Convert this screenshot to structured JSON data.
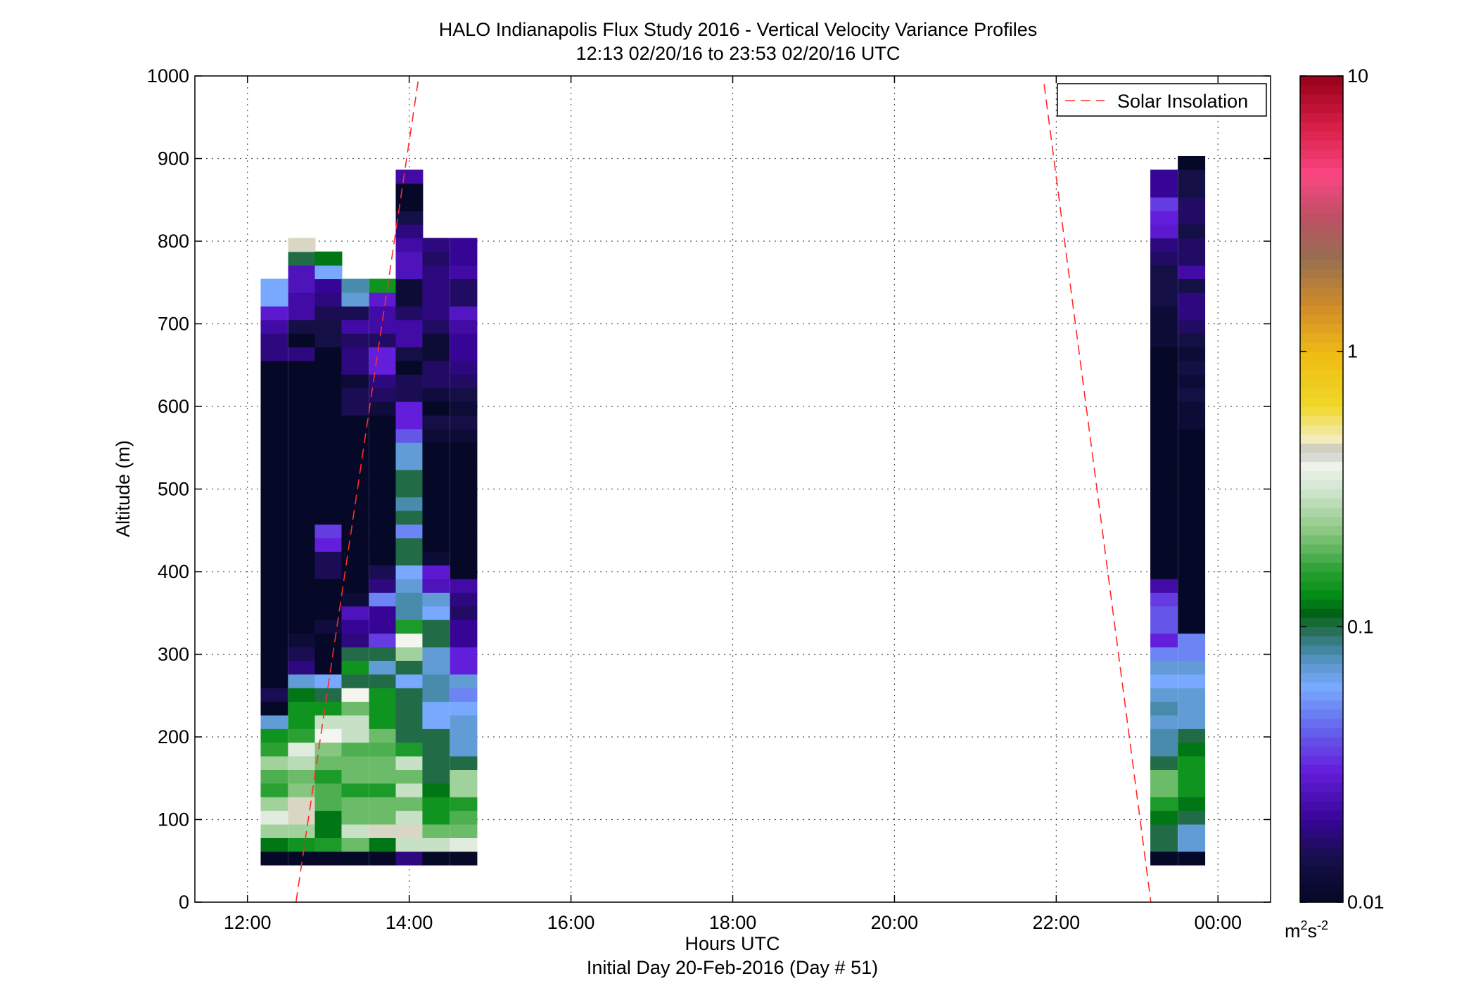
{
  "chart_data": {
    "type": "heatmap",
    "title": "HALO Indianapolis Flux Study 2016 - Vertical Velocity Variance Profiles",
    "subtitle": "12:13 02/20/16 to 23:53 02/20/16  UTC",
    "xlabel": "Hours UTC",
    "xlabel2": "Initial Day 20-Feb-2016 (Day # 51)",
    "ylabel": "Altitude (m)",
    "xlim": [
      11.35,
      24.65
    ],
    "ylim": [
      0,
      1000
    ],
    "x_ticks": [
      12,
      14,
      16,
      18,
      20,
      22,
      24
    ],
    "x_tick_labels": [
      "12:00",
      "14:00",
      "16:00",
      "18:00",
      "20:00",
      "22:00",
      "00:00"
    ],
    "y_ticks": [
      0,
      100,
      200,
      300,
      400,
      500,
      600,
      700,
      800,
      900,
      1000
    ],
    "y_tick_labels": [
      "0",
      "100",
      "200",
      "300",
      "400",
      "500",
      "600",
      "700",
      "800",
      "900",
      "1000"
    ],
    "grid": true,
    "legend": {
      "placement": "top-right",
      "entries": [
        "Solar Insolation"
      ]
    },
    "colorbar": {
      "scale": "log",
      "range": [
        0.01,
        10
      ],
      "tick_values": [
        0.01,
        0.1,
        1,
        10
      ],
      "tick_labels": [
        "0.01",
        "0.1",
        "1",
        "10"
      ],
      "unit_base": "m",
      "unit_sup1": "2",
      "unit_mid": "s",
      "unit_sup2": "-2"
    },
    "profile_altitude_start": 45,
    "profile_altitude_step": 16.5,
    "variance_profiles": [
      {
        "time": 12.33,
        "values": [
          0.01,
          0.12,
          0.25,
          0.35,
          0.25,
          0.16,
          0.18,
          0.25,
          0.16,
          0.14,
          0.07,
          0.01,
          0.015,
          0.01,
          0.01,
          0.01,
          0.01,
          0.01,
          0.01,
          0.01,
          0.01,
          0.01,
          0.01,
          0.01,
          0.01,
          0.01,
          0.01,
          0.01,
          0.01,
          0.01,
          0.01,
          0.01,
          0.01,
          0.01,
          0.01,
          0.01,
          0.01,
          0.018,
          0.018,
          0.022,
          0.028,
          0.06,
          0.06
        ]
      },
      {
        "time": 12.67,
        "values": [
          0.01,
          0.14,
          0.25,
          0.45,
          0.45,
          0.22,
          0.2,
          0.28,
          0.35,
          0.16,
          0.14,
          0.14,
          0.12,
          0.07,
          0.018,
          0.015,
          0.012,
          0.01,
          0.01,
          0.01,
          0.01,
          0.01,
          0.01,
          0.01,
          0.01,
          0.01,
          0.01,
          0.01,
          0.01,
          0.01,
          0.01,
          0.01,
          0.01,
          0.01,
          0.01,
          0.01,
          0.01,
          0.018,
          0.01,
          0.014,
          0.022,
          0.022,
          0.025,
          0.025,
          0.1,
          0.45
        ]
      },
      {
        "time": 13.0,
        "values": [
          0.01,
          0.15,
          0.12,
          0.12,
          0.18,
          0.18,
          0.15,
          0.2,
          0.22,
          0.4,
          0.3,
          0.14,
          0.1,
          0.06,
          0.01,
          0.01,
          0.01,
          0.013,
          0.01,
          0.01,
          0.01,
          0.015,
          0.015,
          0.03,
          0.035,
          0.01,
          0.01,
          0.01,
          0.01,
          0.01,
          0.01,
          0.01,
          0.01,
          0.01,
          0.01,
          0.01,
          0.01,
          0.01,
          0.014,
          0.014,
          0.015,
          0.018,
          0.02,
          0.06,
          0.12
        ]
      },
      {
        "time": 13.33,
        "values": [
          0.01,
          0.2,
          0.3,
          0.2,
          0.2,
          0.15,
          0.2,
          0.2,
          0.18,
          0.3,
          0.3,
          0.2,
          0.4,
          0.1,
          0.14,
          0.1,
          0.018,
          0.02,
          0.025,
          0.012,
          0.01,
          0.01,
          0.01,
          0.01,
          0.01,
          0.01,
          0.01,
          0.01,
          0.01,
          0.01,
          0.01,
          0.01,
          0.01,
          0.015,
          0.015,
          0.012,
          0.018,
          0.018,
          0.016,
          0.022,
          0.015,
          0.07,
          0.08
        ]
      },
      {
        "time": 13.67,
        "values": [
          0.01,
          0.12,
          0.45,
          0.2,
          0.2,
          0.15,
          0.2,
          0.2,
          0.18,
          0.2,
          0.14,
          0.14,
          0.14,
          0.1,
          0.07,
          0.1,
          0.035,
          0.02,
          0.02,
          0.05,
          0.018,
          0.015,
          0.01,
          0.01,
          0.01,
          0.01,
          0.01,
          0.01,
          0.01,
          0.01,
          0.01,
          0.01,
          0.01,
          0.013,
          0.016,
          0.018,
          0.03,
          0.03,
          0.016,
          0.022,
          0.022,
          0.028,
          0.14
        ]
      },
      {
        "time": 14.0,
        "values": [
          0.018,
          0.3,
          0.45,
          0.3,
          0.2,
          0.3,
          0.2,
          0.3,
          0.15,
          0.1,
          0.1,
          0.1,
          0.1,
          0.06,
          0.1,
          0.25,
          0.4,
          0.15,
          0.08,
          0.08,
          0.07,
          0.06,
          0.1,
          0.1,
          0.05,
          0.1,
          0.08,
          0.1,
          0.1,
          0.07,
          0.07,
          0.04,
          0.03,
          0.03,
          0.015,
          0.015,
          0.01,
          0.014,
          0.022,
          0.022,
          0.016,
          0.012,
          0.012,
          0.025,
          0.025,
          0.022,
          0.018,
          0.014,
          0.01,
          0.01,
          0.022
        ]
      },
      {
        "time": 14.33,
        "values": [
          0.01,
          0.3,
          0.2,
          0.14,
          0.14,
          0.12,
          0.1,
          0.1,
          0.1,
          0.1,
          0.06,
          0.06,
          0.08,
          0.08,
          0.07,
          0.07,
          0.1,
          0.1,
          0.06,
          0.07,
          0.025,
          0.028,
          0.012,
          0.01,
          0.01,
          0.01,
          0.01,
          0.01,
          0.01,
          0.01,
          0.01,
          0.012,
          0.014,
          0.01,
          0.013,
          0.016,
          0.016,
          0.012,
          0.012,
          0.016,
          0.018,
          0.018,
          0.018,
          0.018,
          0.016,
          0.018
        ]
      },
      {
        "time": 14.67,
        "values": [
          0.01,
          0.35,
          0.2,
          0.18,
          0.15,
          0.25,
          0.25,
          0.1,
          0.07,
          0.07,
          0.07,
          0.06,
          0.05,
          0.07,
          0.03,
          0.03,
          0.02,
          0.02,
          0.016,
          0.018,
          0.022,
          0.01,
          0.01,
          0.01,
          0.01,
          0.01,
          0.01,
          0.01,
          0.01,
          0.01,
          0.01,
          0.012,
          0.014,
          0.012,
          0.014,
          0.016,
          0.018,
          0.02,
          0.02,
          0.022,
          0.026,
          0.016,
          0.016,
          0.022,
          0.02,
          0.02
        ]
      },
      {
        "time": 23.33,
        "values": [
          0.01,
          0.1,
          0.1,
          0.12,
          0.15,
          0.2,
          0.2,
          0.1,
          0.08,
          0.08,
          0.07,
          0.08,
          0.07,
          0.06,
          0.07,
          0.05,
          0.03,
          0.04,
          0.04,
          0.035,
          0.022,
          0.01,
          0.01,
          0.01,
          0.01,
          0.01,
          0.01,
          0.01,
          0.01,
          0.01,
          0.01,
          0.01,
          0.01,
          0.01,
          0.01,
          0.01,
          0.01,
          0.01,
          0.012,
          0.012,
          0.012,
          0.014,
          0.014,
          0.014,
          0.016,
          0.018,
          0.028,
          0.03,
          0.035,
          0.02,
          0.02
        ]
      },
      {
        "time": 23.67,
        "values": [
          0.01,
          0.07,
          0.07,
          0.1,
          0.12,
          0.14,
          0.14,
          0.14,
          0.12,
          0.1,
          0.07,
          0.07,
          0.07,
          0.06,
          0.07,
          0.05,
          0.05,
          0.01,
          0.01,
          0.01,
          0.01,
          0.01,
          0.01,
          0.01,
          0.01,
          0.01,
          0.01,
          0.01,
          0.01,
          0.01,
          0.01,
          0.01,
          0.012,
          0.012,
          0.014,
          0.012,
          0.014,
          0.012,
          0.014,
          0.016,
          0.018,
          0.018,
          0.014,
          0.022,
          0.016,
          0.016,
          0.014,
          0.016,
          0.016,
          0.014,
          0.014,
          0.01
        ]
      }
    ],
    "series": [
      {
        "name": "Solar Insolation",
        "style": "dashed",
        "color": "#ff2a2a",
        "segments": [
          {
            "x": [
              12.6,
              14.12
            ],
            "y": [
              0,
              1000
            ]
          },
          {
            "x": [
              21.85,
              23.17
            ],
            "y": [
              990,
              0
            ]
          }
        ]
      }
    ]
  }
}
